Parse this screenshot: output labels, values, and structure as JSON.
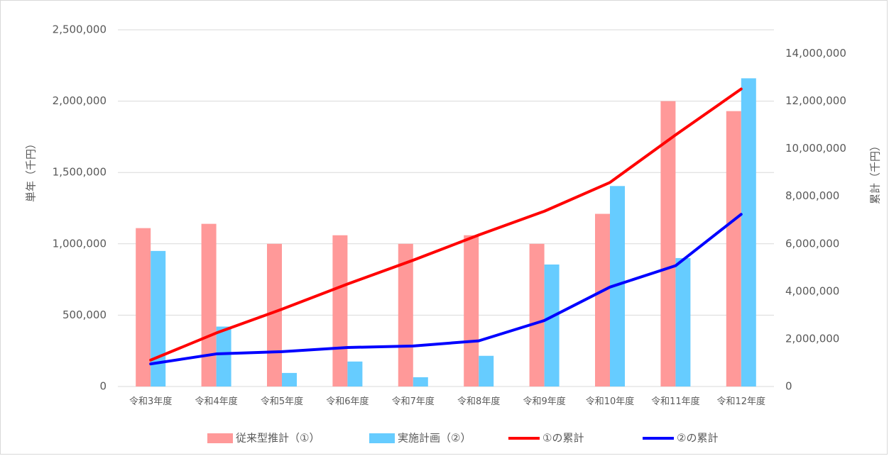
{
  "chart_data": {
    "type": "bar",
    "categories": [
      "令和3年度",
      "令和4年度",
      "令和5年度",
      "令和6年度",
      "令和7年度",
      "令和8年度",
      "令和9年度",
      "令和10年度",
      "令和11年度",
      "令和12年度"
    ],
    "series": [
      {
        "name": "従来型推計（①）",
        "kind": "bar",
        "axis": "left",
        "color": "#ff9999",
        "values": [
          1110000,
          1140000,
          1000000,
          1060000,
          1000000,
          1060000,
          1000000,
          1210000,
          2000000,
          1930000
        ]
      },
      {
        "name": "実施計画（②）",
        "kind": "bar",
        "axis": "left",
        "color": "#66ccff",
        "values": [
          950000,
          420000,
          95000,
          175000,
          65000,
          215000,
          855000,
          1405000,
          900000,
          2160000
        ]
      },
      {
        "name": "①の累計",
        "kind": "line",
        "axis": "right",
        "color": "#ff0000",
        "values": [
          1110000,
          2250000,
          3250000,
          4310000,
          5310000,
          6370000,
          7370000,
          8580000,
          10580000,
          12510000
        ]
      },
      {
        "name": "②の累計",
        "kind": "line",
        "axis": "right",
        "color": "#0000ff",
        "values": [
          950000,
          1370000,
          1465000,
          1640000,
          1705000,
          1920000,
          2775000,
          4180000,
          5080000,
          7240000
        ]
      }
    ],
    "ylabel": "単年（千円）",
    "y2label": "累計（千円）",
    "ylim": [
      0,
      2500000
    ],
    "y2lim": [
      0,
      15000000
    ],
    "yticks": [
      "0",
      "500,000",
      "1,000,000",
      "1,500,000",
      "2,000,000",
      "2,500,000"
    ],
    "y2ticks": [
      "0",
      "2,000,000",
      "4,000,000",
      "6,000,000",
      "8,000,000",
      "10,000,000",
      "12,000,000",
      "14,000,000"
    ],
    "grid": true,
    "legend": "bottom"
  }
}
